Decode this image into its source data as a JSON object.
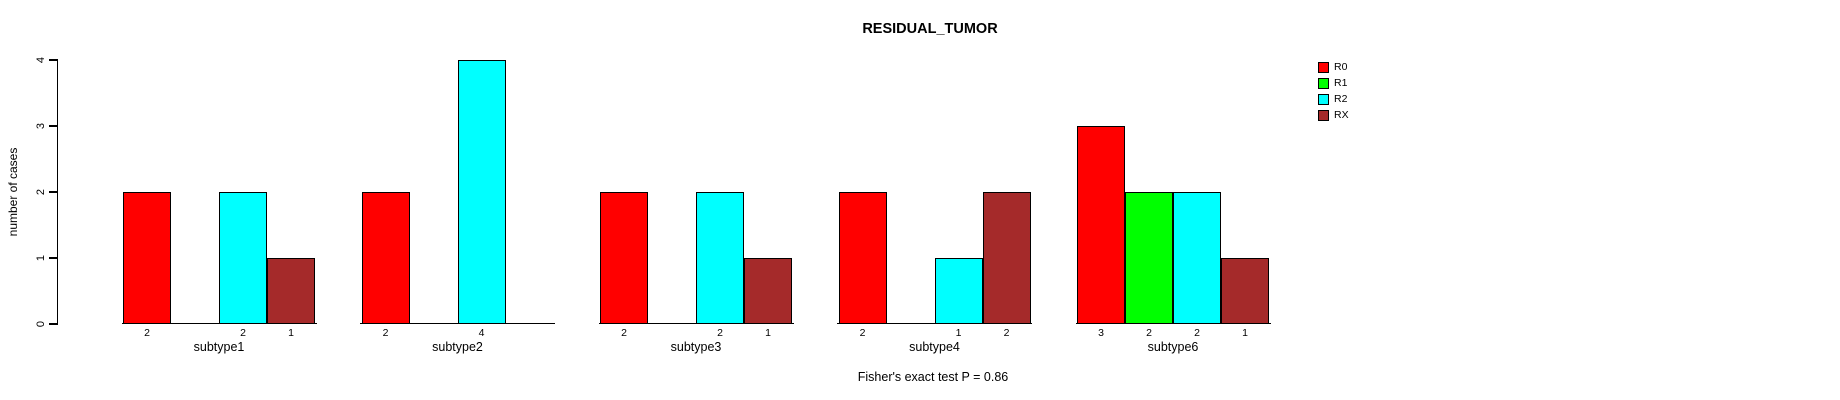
{
  "title": "RESIDUAL_TUMOR",
  "footer": "Fisher's exact test P = 0.86",
  "y_axis": {
    "label": "number of cases",
    "tick_labels": [
      "0",
      "1",
      "2",
      "3",
      "4"
    ]
  },
  "legend": {
    "position": "right",
    "items": [
      {
        "label": "R0",
        "color": "#FF0000"
      },
      {
        "label": "R1",
        "color": "#00FF00"
      },
      {
        "label": "R2",
        "color": "#00FFFF"
      },
      {
        "label": "RX",
        "color": "#A52A2A"
      }
    ]
  },
  "chart_data": {
    "type": "bar",
    "title": "RESIDUAL_TUMOR",
    "xlabel": "",
    "ylabel": "number of cases",
    "ylim": [
      0,
      4
    ],
    "yticks": [
      0,
      1,
      2,
      3,
      4
    ],
    "grid": false,
    "legend_position": "right",
    "categories": [
      "subtype1",
      "subtype2",
      "subtype3",
      "subtype4",
      "subtype6"
    ],
    "series": [
      {
        "name": "R0",
        "color": "#FF0000",
        "values": [
          2,
          2,
          2,
          2,
          3
        ]
      },
      {
        "name": "R1",
        "color": "#00FF00",
        "values": [
          0,
          0,
          0,
          0,
          2
        ]
      },
      {
        "name": "R2",
        "color": "#00FFFF",
        "values": [
          2,
          4,
          2,
          1,
          2
        ]
      },
      {
        "name": "RX",
        "color": "#A52A2A",
        "values": [
          1,
          0,
          1,
          2,
          1
        ]
      }
    ],
    "bar_value_labels": {
      "subtype1": {
        "R0": "2",
        "R2": "2",
        "RX": "1"
      },
      "subtype2": {
        "R0": "2",
        "R2": "4"
      },
      "subtype3": {
        "R0": "2",
        "R2": "2",
        "RX": "1"
      },
      "subtype4": {
        "R0": "2",
        "R2": "1",
        "RX": "2"
      },
      "subtype6": {
        "R0": "3",
        "R1": "2",
        "R2": "2",
        "RX": "1"
      }
    },
    "annotation": "Fisher's exact test P = 0.86"
  }
}
